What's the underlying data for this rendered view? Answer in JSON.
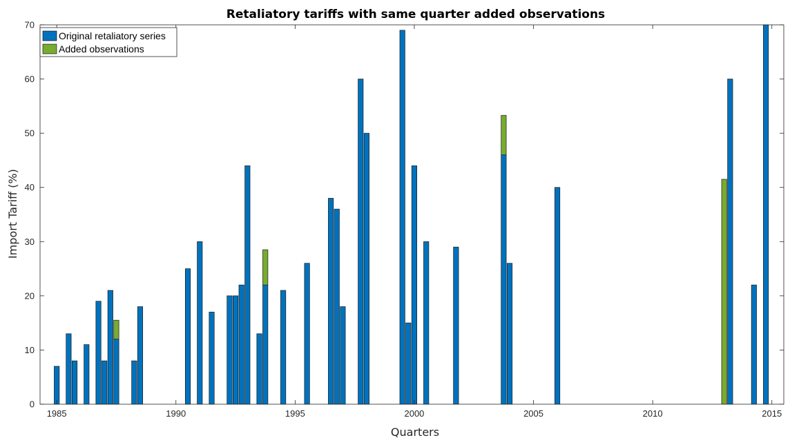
{
  "chart_data": {
    "type": "bar",
    "stacked": true,
    "title": "Retaliatory tariffs with same quarter added observations",
    "xlabel": "Quarters",
    "ylabel": "Import Tariff (%)",
    "xlim": [
      1984.3,
      2015.5
    ],
    "ylim": [
      0,
      70
    ],
    "xticks": [
      1985,
      1990,
      1995,
      2000,
      2005,
      2010,
      2015
    ],
    "yticks": [
      0,
      10,
      20,
      30,
      40,
      50,
      60,
      70
    ],
    "grid": false,
    "legend_position": "top-left",
    "colors": {
      "original": "#0072BD",
      "added": "#77AC30"
    },
    "series": [
      {
        "name": "Original retaliatory series",
        "key": "original",
        "points": [
          {
            "x": 1985.0,
            "y": 7
          },
          {
            "x": 1985.5,
            "y": 13
          },
          {
            "x": 1985.75,
            "y": 8
          },
          {
            "x": 1986.25,
            "y": 11
          },
          {
            "x": 1986.75,
            "y": 19
          },
          {
            "x": 1987.0,
            "y": 8
          },
          {
            "x": 1987.25,
            "y": 21
          },
          {
            "x": 1987.5,
            "y": 12
          },
          {
            "x": 1988.25,
            "y": 8
          },
          {
            "x": 1988.5,
            "y": 18
          },
          {
            "x": 1990.5,
            "y": 25
          },
          {
            "x": 1991.0,
            "y": 30
          },
          {
            "x": 1991.5,
            "y": 17
          },
          {
            "x": 1992.25,
            "y": 20
          },
          {
            "x": 1992.5,
            "y": 20
          },
          {
            "x": 1992.75,
            "y": 22
          },
          {
            "x": 1993.0,
            "y": 44
          },
          {
            "x": 1993.5,
            "y": 13
          },
          {
            "x": 1993.75,
            "y": 22
          },
          {
            "x": 1994.5,
            "y": 21
          },
          {
            "x": 1995.5,
            "y": 26
          },
          {
            "x": 1996.5,
            "y": 38
          },
          {
            "x": 1996.75,
            "y": 36
          },
          {
            "x": 1997.0,
            "y": 18
          },
          {
            "x": 1997.75,
            "y": 60
          },
          {
            "x": 1998.0,
            "y": 50
          },
          {
            "x": 1999.5,
            "y": 69
          },
          {
            "x": 1999.75,
            "y": 15
          },
          {
            "x": 2000.0,
            "y": 44
          },
          {
            "x": 2000.5,
            "y": 30
          },
          {
            "x": 2001.75,
            "y": 29
          },
          {
            "x": 2003.75,
            "y": 46
          },
          {
            "x": 2004.0,
            "y": 26
          },
          {
            "x": 2006.0,
            "y": 40
          },
          {
            "x": 2013.25,
            "y": 60
          },
          {
            "x": 2014.25,
            "y": 22
          },
          {
            "x": 2014.75,
            "y": 70
          }
        ]
      },
      {
        "name": "Added observations",
        "key": "added",
        "points": [
          {
            "x": 1987.5,
            "y": 3.5
          },
          {
            "x": 1993.75,
            "y": 6.5
          },
          {
            "x": 2003.75,
            "y": 7.3
          },
          {
            "x": 2013.0,
            "y": 41.5
          }
        ]
      }
    ]
  }
}
